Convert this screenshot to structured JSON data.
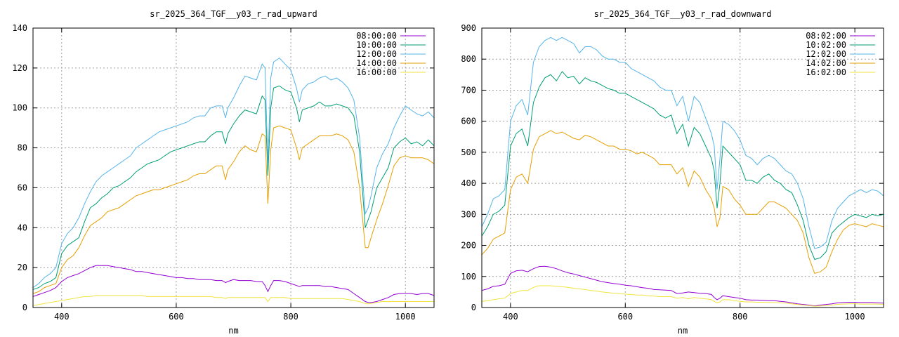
{
  "charts": [
    {
      "type": "line",
      "title": "sr_2025_364_TGF__y03_r_rad_upward",
      "xlabel": "nm",
      "ylabel": "",
      "xlim": [
        350,
        1050
      ],
      "ylim": [
        0,
        140
      ],
      "xticks": [
        400,
        600,
        800,
        1000
      ],
      "yticks": [
        0,
        20,
        40,
        60,
        80,
        100,
        120,
        140
      ],
      "grid": true,
      "legend_position": "top-right",
      "x": [
        350,
        360,
        370,
        380,
        390,
        400,
        410,
        420,
        430,
        440,
        450,
        460,
        470,
        480,
        490,
        500,
        510,
        520,
        530,
        540,
        550,
        560,
        570,
        580,
        590,
        600,
        610,
        620,
        630,
        640,
        650,
        660,
        670,
        680,
        686,
        690,
        700,
        710,
        720,
        730,
        740,
        750,
        755,
        760,
        765,
        770,
        780,
        790,
        800,
        810,
        815,
        820,
        830,
        840,
        850,
        860,
        870,
        880,
        890,
        900,
        910,
        920,
        930,
        935,
        940,
        950,
        960,
        970,
        980,
        990,
        1000,
        1010,
        1020,
        1030,
        1040,
        1050
      ],
      "series": [
        {
          "name": "08:00:00",
          "color": "#9400d3",
          "values": [
            5.5,
            6.5,
            7.5,
            8.5,
            10,
            13,
            15,
            16,
            17,
            18.5,
            20,
            21,
            21,
            21,
            20.5,
            20,
            19.5,
            19,
            18,
            18,
            17.5,
            17,
            16.5,
            16,
            15.5,
            15,
            15,
            14.5,
            14.5,
            14,
            14,
            14,
            13.5,
            13.5,
            12.5,
            13,
            14,
            13.5,
            13.5,
            13.5,
            13,
            13,
            11,
            8,
            11,
            13.5,
            13.5,
            13,
            12,
            11,
            10.5,
            11,
            11,
            11,
            11,
            10.5,
            10.5,
            10,
            9.5,
            9,
            7,
            5,
            3,
            2.5,
            2.5,
            3,
            4,
            5,
            6.5,
            7,
            7,
            7,
            6.5,
            7,
            7,
            6
          ]
        },
        {
          "name": "10:00:00",
          "color": "#009e73",
          "values": [
            9,
            10,
            12,
            13,
            15,
            27,
            31,
            33,
            35,
            43,
            50,
            52,
            55,
            57,
            60,
            61,
            63,
            65,
            68,
            70,
            72,
            73,
            74,
            76,
            78,
            79,
            80,
            81,
            82,
            83,
            83,
            86,
            88,
            88,
            82,
            87,
            92,
            96,
            99,
            98,
            97,
            106,
            104,
            66,
            100,
            110,
            111,
            109,
            108,
            100,
            93,
            99,
            100,
            101,
            103,
            101,
            101,
            102,
            101,
            100,
            96,
            78,
            40,
            44,
            48,
            60,
            65,
            70,
            80,
            83,
            85,
            82,
            83,
            81,
            84,
            81
          ]
        },
        {
          "name": "12:00:00",
          "color": "#56b4e9",
          "values": [
            10,
            12,
            15,
            17,
            20,
            32,
            37,
            40,
            45,
            52,
            58,
            63,
            66,
            68,
            70,
            72,
            74,
            76,
            80,
            82,
            84,
            86,
            88,
            89,
            90,
            91,
            92,
            93,
            95,
            96,
            96,
            100,
            101,
            101,
            95,
            100,
            105,
            111,
            116,
            115,
            114,
            122,
            120,
            72,
            115,
            123,
            125,
            122,
            119,
            110,
            103,
            109,
            112,
            113,
            115,
            116,
            114,
            115,
            113,
            110,
            104,
            85,
            47,
            50,
            56,
            70,
            77,
            82,
            90,
            96,
            101,
            99,
            97,
            96,
            98,
            95
          ]
        },
        {
          "name": "14:00:00",
          "color": "#e69f00",
          "values": [
            7,
            8,
            10,
            11,
            12,
            20,
            24,
            26,
            30,
            36,
            41,
            43,
            45,
            48,
            49,
            50,
            52,
            54,
            56,
            57,
            58,
            59,
            59,
            60,
            61,
            62,
            63,
            64,
            66,
            67,
            67,
            69,
            71,
            71,
            64,
            69,
            73,
            78,
            81,
            79,
            78,
            87,
            86,
            52,
            79,
            90,
            91,
            90,
            89,
            80,
            74,
            80,
            82,
            84,
            86,
            86,
            86,
            87,
            86,
            84,
            78,
            60,
            30,
            30,
            35,
            44,
            52,
            61,
            71,
            75,
            76,
            75,
            75,
            75,
            74,
            72
          ]
        },
        {
          "name": "16:00:00",
          "color": "#f0e442",
          "values": [
            1,
            1.5,
            2,
            2.5,
            3,
            3.5,
            4,
            4.5,
            5,
            5.5,
            5.5,
            6,
            6,
            6,
            6,
            6,
            6,
            6,
            6,
            6,
            5.5,
            5.5,
            5.5,
            5.5,
            5.5,
            5.5,
            5.5,
            5.5,
            5.5,
            5.5,
            5.5,
            5.5,
            5,
            5,
            4.5,
            5,
            5,
            5,
            5,
            5,
            5,
            5,
            5,
            3,
            5,
            5,
            5,
            5,
            4.5,
            4.5,
            4.5,
            4.5,
            4.5,
            4.5,
            4.5,
            4.5,
            4.5,
            4.5,
            4.5,
            4,
            3.5,
            3,
            2,
            1.8,
            2,
            2.5,
            3,
            3,
            3,
            3,
            3,
            3,
            3,
            3,
            3,
            3
          ]
        }
      ]
    },
    {
      "type": "line",
      "title": "sr_2025_364_TGF__y03_r_rad_downward",
      "xlabel": "nm",
      "ylabel": "",
      "xlim": [
        350,
        1050
      ],
      "ylim": [
        0,
        900
      ],
      "xticks": [
        400,
        600,
        800,
        1000
      ],
      "yticks": [
        0,
        100,
        200,
        300,
        400,
        500,
        600,
        700,
        800,
        900
      ],
      "grid": true,
      "legend_position": "top-right",
      "x": [
        350,
        360,
        370,
        380,
        390,
        400,
        410,
        420,
        430,
        440,
        450,
        460,
        470,
        480,
        490,
        500,
        510,
        520,
        530,
        540,
        550,
        560,
        570,
        580,
        590,
        600,
        610,
        620,
        630,
        640,
        650,
        660,
        670,
        680,
        690,
        700,
        710,
        720,
        730,
        740,
        750,
        755,
        760,
        765,
        770,
        780,
        790,
        800,
        810,
        820,
        830,
        840,
        850,
        860,
        870,
        880,
        890,
        900,
        910,
        920,
        930,
        940,
        950,
        960,
        970,
        980,
        990,
        1000,
        1010,
        1020,
        1030,
        1040,
        1050
      ],
      "series": [
        {
          "name": "08:02:00",
          "color": "#9400d3",
          "values": [
            55,
            60,
            68,
            70,
            75,
            110,
            118,
            120,
            115,
            125,
            132,
            133,
            130,
            125,
            118,
            112,
            108,
            103,
            98,
            93,
            88,
            83,
            80,
            77,
            75,
            72,
            70,
            67,
            64,
            62,
            58,
            57,
            56,
            55,
            45,
            47,
            50,
            48,
            46,
            45,
            42,
            32,
            25,
            30,
            38,
            35,
            32,
            30,
            25,
            24,
            24,
            23,
            22,
            22,
            20,
            18,
            15,
            12,
            10,
            8,
            5,
            8,
            10,
            12,
            15,
            16,
            17,
            17,
            16,
            16,
            16,
            15,
            14
          ]
        },
        {
          "name": "10:02:00",
          "color": "#009e73",
          "values": [
            230,
            260,
            300,
            310,
            330,
            520,
            560,
            575,
            520,
            660,
            710,
            740,
            750,
            730,
            760,
            740,
            745,
            720,
            740,
            730,
            725,
            715,
            705,
            700,
            690,
            690,
            680,
            670,
            660,
            650,
            640,
            620,
            610,
            620,
            560,
            590,
            520,
            580,
            560,
            520,
            480,
            440,
            320,
            400,
            520,
            500,
            480,
            460,
            410,
            410,
            400,
            420,
            430,
            410,
            400,
            380,
            370,
            330,
            280,
            200,
            155,
            160,
            180,
            240,
            260,
            275,
            290,
            300,
            295,
            290,
            300,
            295,
            300
          ]
        },
        {
          "name": "12:02:00",
          "color": "#56b4e9",
          "values": [
            260,
            300,
            350,
            360,
            380,
            600,
            650,
            670,
            620,
            790,
            840,
            860,
            870,
            860,
            870,
            860,
            850,
            820,
            840,
            840,
            830,
            810,
            800,
            800,
            790,
            790,
            770,
            760,
            750,
            740,
            730,
            710,
            700,
            700,
            650,
            680,
            600,
            680,
            660,
            610,
            560,
            520,
            380,
            480,
            600,
            590,
            570,
            540,
            490,
            480,
            460,
            480,
            490,
            480,
            460,
            440,
            430,
            400,
            350,
            260,
            190,
            195,
            210,
            280,
            320,
            340,
            360,
            370,
            380,
            370,
            380,
            375,
            360
          ]
        },
        {
          "name": "14:02:00",
          "color": "#e69f00",
          "values": [
            170,
            190,
            220,
            230,
            240,
            380,
            420,
            430,
            400,
            510,
            550,
            560,
            570,
            560,
            565,
            555,
            545,
            540,
            555,
            550,
            540,
            530,
            520,
            520,
            510,
            510,
            505,
            495,
            500,
            490,
            480,
            460,
            460,
            460,
            430,
            450,
            390,
            440,
            420,
            380,
            350,
            320,
            260,
            290,
            390,
            380,
            350,
            330,
            300,
            300,
            300,
            320,
            340,
            340,
            330,
            320,
            300,
            280,
            240,
            160,
            110,
            115,
            130,
            180,
            220,
            250,
            265,
            270,
            265,
            260,
            270,
            265,
            260
          ]
        },
        {
          "name": "16:02:00",
          "color": "#f0e442",
          "values": [
            20,
            22,
            25,
            28,
            30,
            45,
            50,
            55,
            55,
            65,
            70,
            70,
            70,
            68,
            67,
            65,
            62,
            60,
            58,
            55,
            53,
            50,
            48,
            46,
            45,
            43,
            42,
            40,
            40,
            38,
            37,
            35,
            35,
            35,
            30,
            32,
            28,
            32,
            30,
            28,
            25,
            20,
            15,
            18,
            25,
            25,
            22,
            20,
            18,
            18,
            17,
            17,
            16,
            16,
            15,
            14,
            12,
            10,
            8,
            6,
            4,
            5,
            6,
            8,
            10,
            11,
            12,
            12,
            11,
            11,
            11,
            11,
            10
          ]
        }
      ]
    }
  ]
}
